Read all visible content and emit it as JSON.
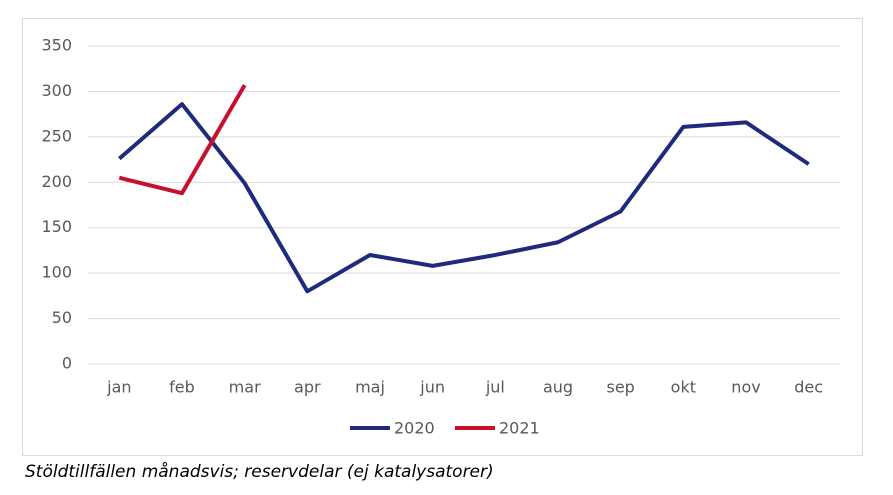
{
  "chart_data": {
    "type": "line",
    "caption": "Stöldtillfällen månadsvis; reservdelar (ej katalysatorer)",
    "categories": [
      "jan",
      "feb",
      "mar",
      "apr",
      "maj",
      "jun",
      "jul",
      "aug",
      "sep",
      "okt",
      "nov",
      "dec"
    ],
    "series": [
      {
        "name": "2020",
        "color": "#1f2a7c",
        "values": [
          226,
          286,
          199,
          80,
          120,
          108,
          120,
          134,
          168,
          261,
          266,
          220
        ]
      },
      {
        "name": "2021",
        "color": "#c8102e",
        "values": [
          205,
          188,
          307,
          null,
          null,
          null,
          null,
          null,
          null,
          null,
          null,
          null
        ]
      }
    ],
    "ylim": [
      0,
      350
    ],
    "yticks": [
      0,
      50,
      100,
      150,
      200,
      250,
      300,
      350
    ],
    "grid": true,
    "legend": "bottom"
  }
}
